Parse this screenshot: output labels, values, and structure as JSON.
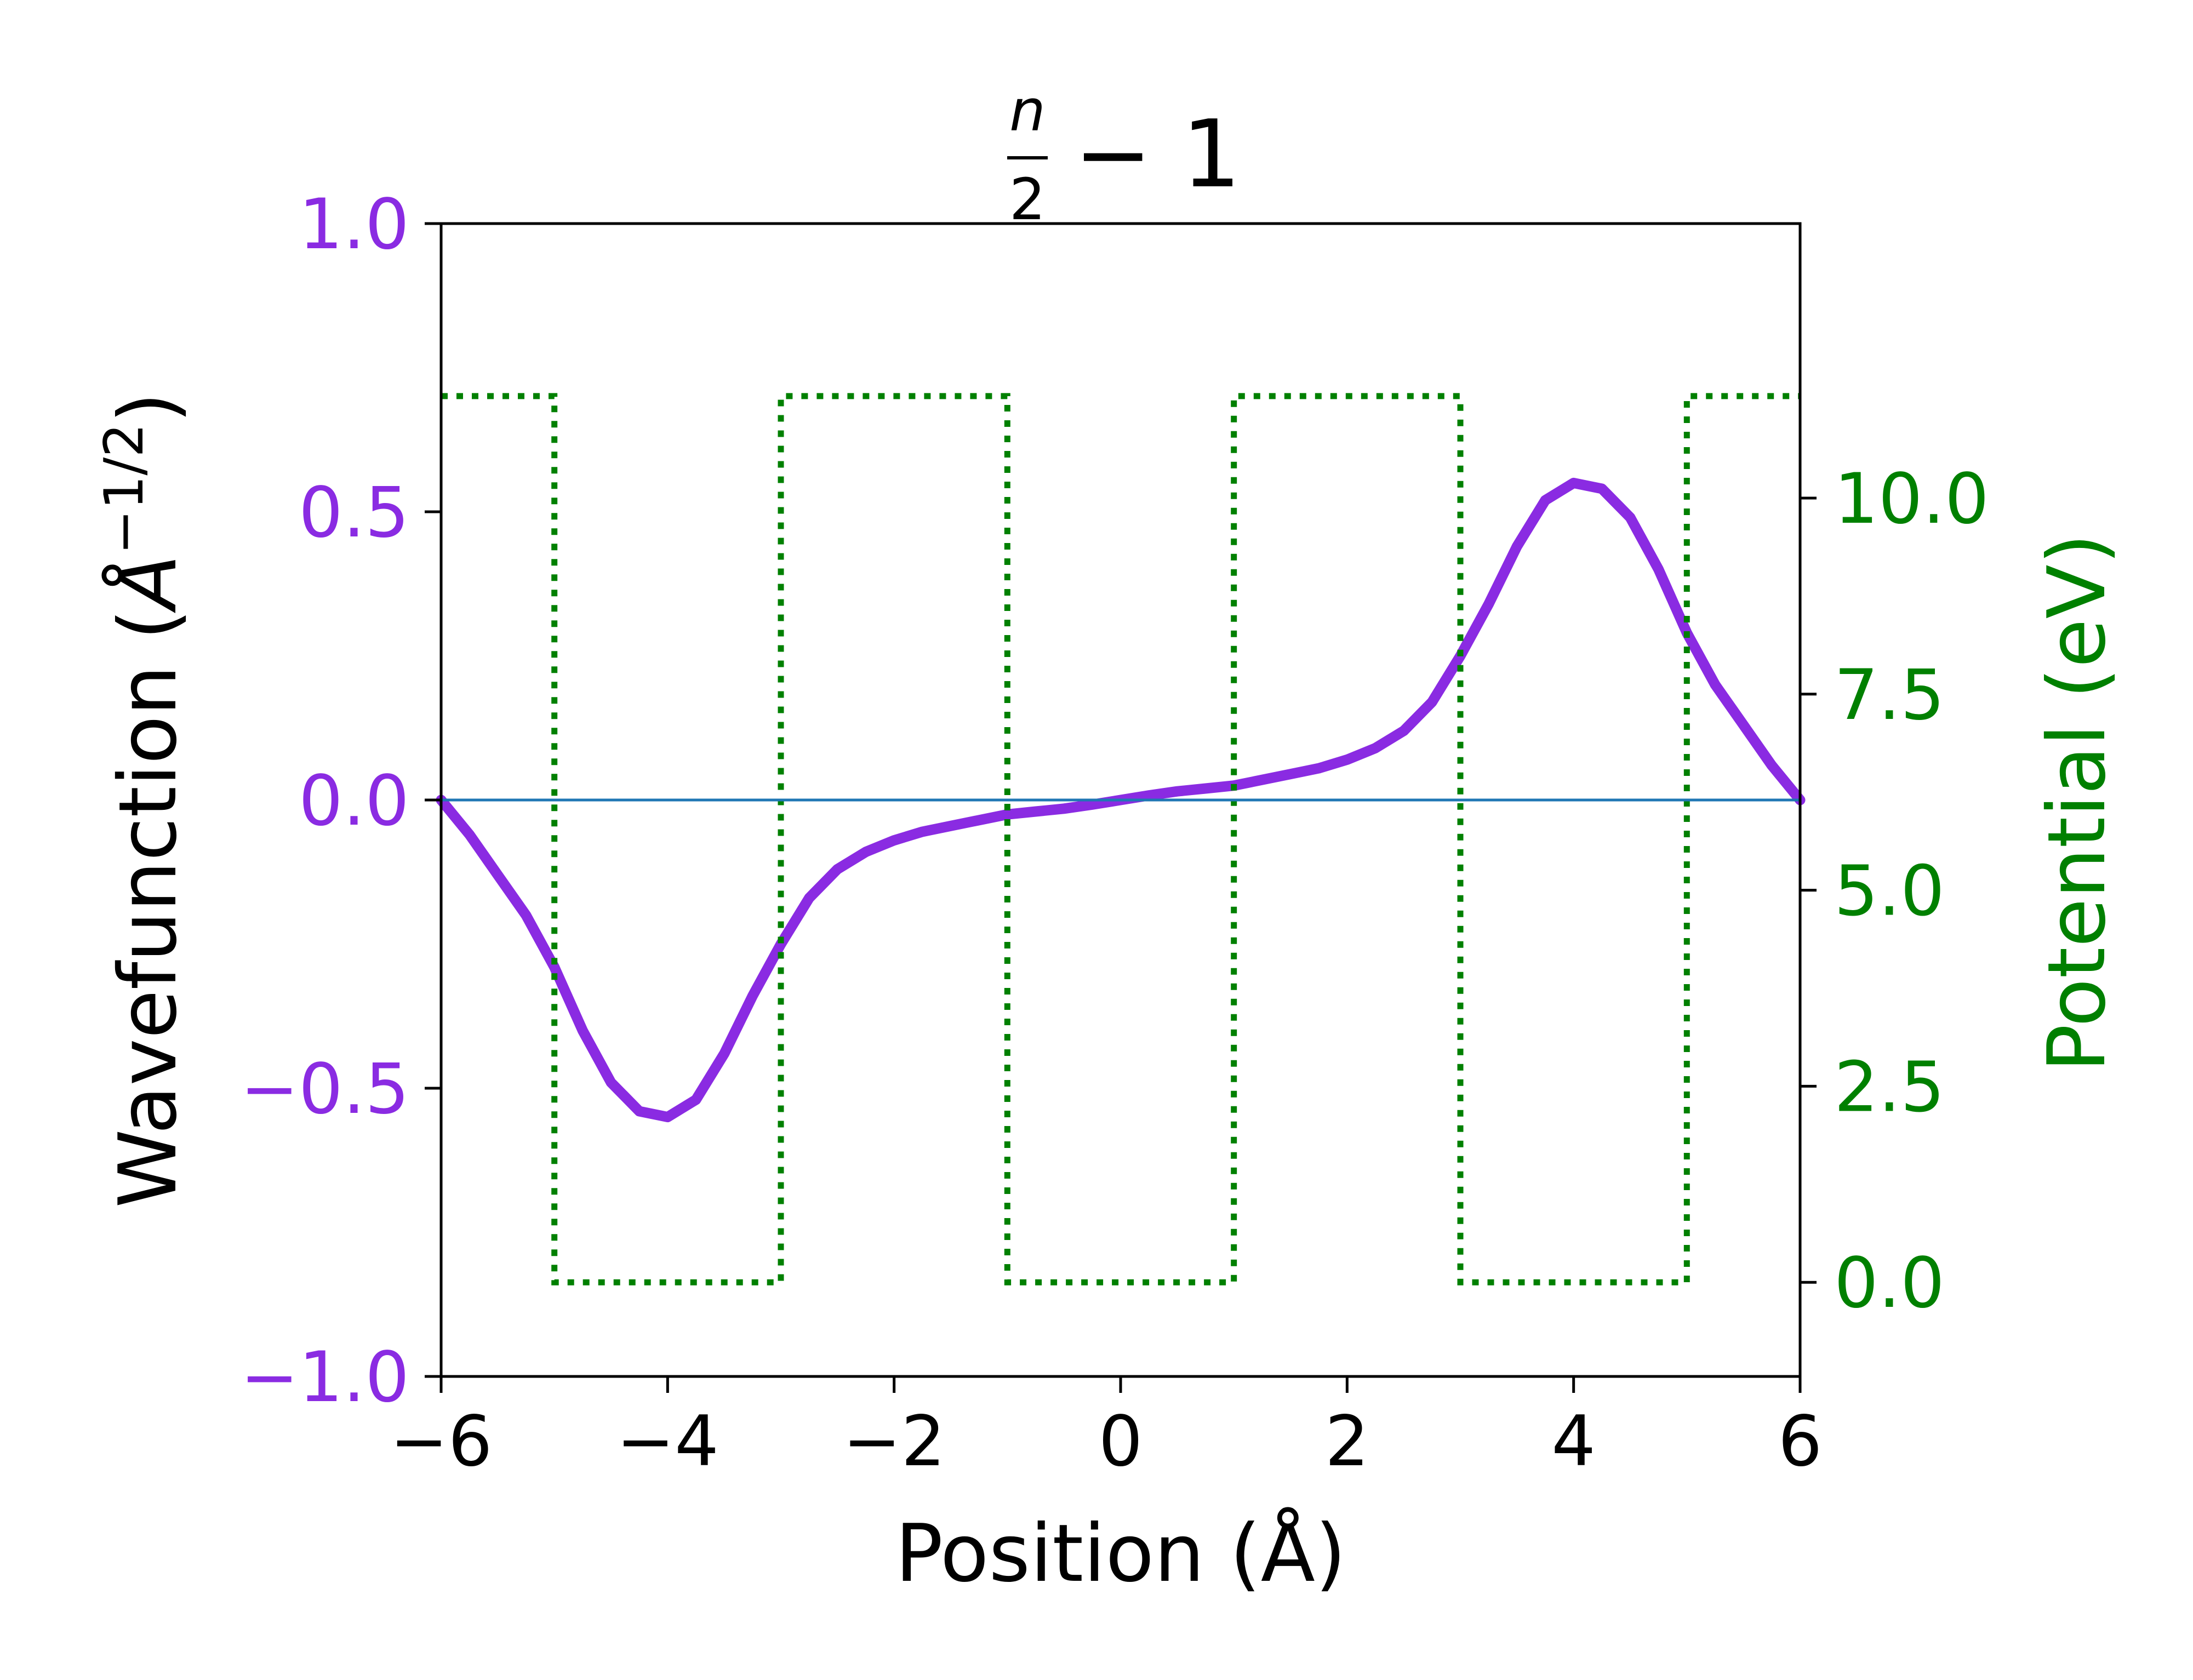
{
  "chart_data": {
    "type": "line",
    "title": {
      "numerator": "n",
      "denominator": "2",
      "rest": "− 1"
    },
    "xlabel": "Position (Å)",
    "ylabel_left": {
      "prefix": "Wavefunction (",
      "unit": "Å",
      "exponent": "−1/2",
      "suffix": ")"
    },
    "ylabel_right": "Potential (eV)",
    "xlim": [
      -6,
      6
    ],
    "ylim_left": [
      -1.0,
      1.0
    ],
    "ylim_right": [
      -1.2,
      13.5
    ],
    "x_ticks": [
      -6,
      -4,
      -2,
      0,
      2,
      4,
      6
    ],
    "x_tick_labels": [
      "−6",
      "−4",
      "−2",
      "0",
      "2",
      "4",
      "6"
    ],
    "y_left_ticks": [
      -1.0,
      -0.5,
      0.0,
      0.5,
      1.0
    ],
    "y_left_tick_labels": [
      "−1.0",
      "−0.5",
      "0.0",
      "0.5",
      "1.0"
    ],
    "y_right_ticks": [
      0.0,
      2.5,
      5.0,
      7.5,
      10.0
    ],
    "y_right_tick_labels": [
      "0.0",
      "2.5",
      "5.0",
      "7.5",
      "10.0"
    ],
    "colors": {
      "wavefunction": "#8a2be2",
      "potential": "#008000",
      "zero_line": "#1f77b4",
      "axes": "#000000"
    },
    "series": [
      {
        "axis": "left",
        "style": "solid",
        "x": [
          -6.0,
          -5.75,
          -5.5,
          -5.25,
          -5.0,
          -4.75,
          -4.5,
          -4.25,
          -4.0,
          -3.75,
          -3.5,
          -3.25,
          -3.0,
          -2.75,
          -2.5,
          -2.25,
          -2.0,
          -1.75,
          -1.5,
          -1.25,
          -1.0,
          -0.75,
          -0.5,
          -0.25,
          0.0,
          0.25,
          0.5,
          0.75,
          1.0,
          1.25,
          1.5,
          1.75,
          2.0,
          2.25,
          2.5,
          2.75,
          3.0,
          3.25,
          3.5,
          3.75,
          4.0,
          4.25,
          4.5,
          4.75,
          5.0,
          5.25,
          5.5,
          5.75,
          6.0
        ],
        "values": [
          0.0,
          -0.06,
          -0.13,
          -0.2,
          -0.29,
          -0.4,
          -0.49,
          -0.54,
          -0.55,
          -0.52,
          -0.44,
          -0.34,
          -0.25,
          -0.17,
          -0.12,
          -0.09,
          -0.07,
          -0.055,
          -0.045,
          -0.035,
          -0.025,
          -0.02,
          -0.015,
          -0.008,
          0.0,
          0.008,
          0.015,
          0.02,
          0.025,
          0.035,
          0.045,
          0.055,
          0.07,
          0.09,
          0.12,
          0.17,
          0.25,
          0.34,
          0.44,
          0.52,
          0.55,
          0.54,
          0.49,
          0.4,
          0.29,
          0.2,
          0.13,
          0.06,
          0.0
        ]
      },
      {
        "axis": "right",
        "style": "dotted",
        "x": [
          -6,
          -5,
          -5,
          -3,
          -3,
          -1,
          -1,
          1,
          1,
          3,
          3,
          5,
          5,
          6
        ],
        "values": [
          11.3,
          11.3,
          0,
          0,
          11.3,
          11.3,
          0,
          0,
          11.3,
          11.3,
          0,
          0,
          11.3,
          11.3
        ]
      },
      {
        "axis": "left",
        "style": "thin",
        "x": [
          -6,
          6
        ],
        "values": [
          0,
          0
        ]
      }
    ]
  }
}
